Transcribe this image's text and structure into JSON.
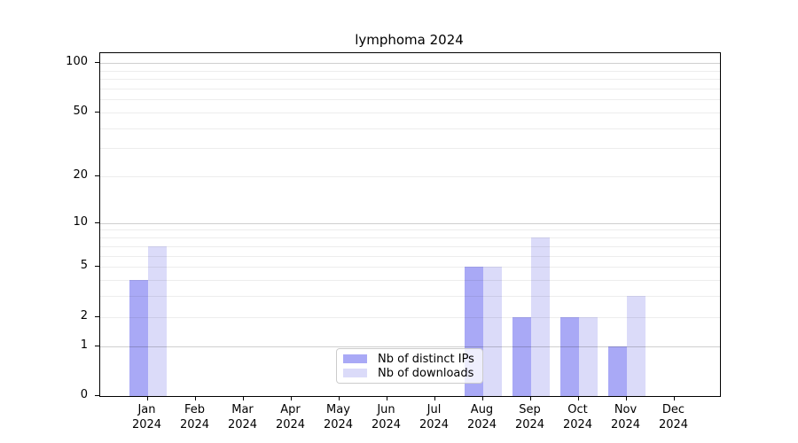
{
  "title": "lymphoma 2024",
  "chart_data": {
    "type": "bar",
    "title": "lymphoma 2024",
    "categories": [
      "Jan",
      "Feb",
      "Mar",
      "Apr",
      "May",
      "Jun",
      "Jul",
      "Aug",
      "Sep",
      "Oct",
      "Nov",
      "Dec"
    ],
    "category_year": "2024",
    "series": [
      {
        "name": "Nb of distinct IPs",
        "color": "#a9a9f6",
        "values": [
          4,
          0,
          0,
          0,
          0,
          0,
          0,
          5,
          2,
          2,
          1,
          0
        ]
      },
      {
        "name": "Nb of downloads",
        "color": "#dbdbf9",
        "values": [
          7,
          0,
          0,
          0,
          0,
          0,
          0,
          5,
          8,
          2,
          3,
          0
        ]
      }
    ],
    "xlabel": "",
    "ylabel": "",
    "yscale": "log1p",
    "ylim": [
      0,
      115
    ],
    "yticks": [
      {
        "value": 0,
        "label": "0"
      },
      {
        "value": 1,
        "label": "1"
      },
      {
        "value": 2,
        "label": "2"
      },
      {
        "value": 5,
        "label": "5"
      },
      {
        "value": 10,
        "label": "10"
      },
      {
        "value": 20,
        "label": "20"
      },
      {
        "value": 50,
        "label": "50"
      },
      {
        "value": 100,
        "label": "100"
      }
    ],
    "major_gridlines": [
      1,
      10,
      100
    ],
    "minor_gridlines": [
      2,
      3,
      4,
      5,
      6,
      7,
      8,
      9,
      20,
      30,
      40,
      50,
      60,
      70,
      80,
      90
    ],
    "grid": true,
    "legend": {
      "position": "lower center",
      "entries": [
        "Nb of distinct IPs",
        "Nb of downloads"
      ]
    }
  }
}
